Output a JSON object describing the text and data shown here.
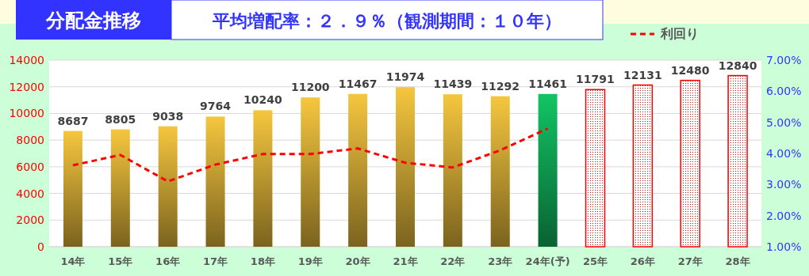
{
  "chart_data": {
    "type": "bar",
    "title": "分配金推移",
    "subtitle": "平均増配率：２．９％（観測期間：１０年）",
    "categories": [
      "14年",
      "15年",
      "16年",
      "17年",
      "18年",
      "19年",
      "20年",
      "21年",
      "22年",
      "23年",
      "24年(予)",
      "25年",
      "26年",
      "27年",
      "28年"
    ],
    "series": [
      {
        "colors": [
          "#f5c63e",
          "#f5c63e",
          "#f5c63e",
          "#f5c63e",
          "#f5c63e",
          "#f5c63e",
          "#f5c63e",
          "#f5c63e",
          "#f5c63e",
          "#f5c63e",
          "#12c464",
          null,
          null,
          null,
          null
        ],
        "values": [
          8687,
          8805,
          9038,
          9764,
          10240,
          11200,
          11467,
          11974,
          11439,
          11292,
          11461,
          null,
          null,
          null,
          null
        ],
        "value_labels": [
          "8687",
          "8805",
          "9038",
          "9764",
          "10240",
          "11200",
          "11467",
          "11974",
          "11439",
          "11292",
          "11461",
          null,
          null,
          null,
          null
        ]
      },
      {
        "color": "#ff0000",
        "values": [
          null,
          null,
          null,
          null,
          null,
          null,
          null,
          null,
          null,
          null,
          null,
          11791,
          12131,
          12480,
          12840
        ],
        "value_labels": [
          null,
          null,
          null,
          null,
          null,
          null,
          null,
          null,
          null,
          null,
          null,
          "11791",
          "12131",
          "12480",
          "12840"
        ]
      },
      {
        "type": "line",
        "name": "利回り",
        "axis": "y2",
        "color": "#ff0000",
        "line_style": "dashed",
        "values": [
          3.62,
          3.95,
          3.1,
          3.64,
          3.98,
          3.98,
          4.16,
          3.7,
          3.55,
          4.1,
          4.8,
          null,
          null,
          null,
          null
        ]
      }
    ],
    "ylim": [
      0,
      14000
    ],
    "yticks": [
      0,
      2000,
      4000,
      6000,
      8000,
      10000,
      12000,
      14000
    ],
    "y2lim": [
      1,
      7
    ],
    "y2ticks": [
      {
        "value": 1,
        "label": "1.00%"
      },
      {
        "value": 2,
        "label": "2.00%"
      },
      {
        "value": 3,
        "label": "3.00%"
      },
      {
        "value": 4,
        "label": "4.00%"
      },
      {
        "value": 5,
        "label": "5.00%"
      },
      {
        "value": 6,
        "label": "6.00%"
      },
      {
        "value": 7,
        "label": "7.00%"
      }
    ],
    "grid": "y",
    "legend": "top right"
  }
}
